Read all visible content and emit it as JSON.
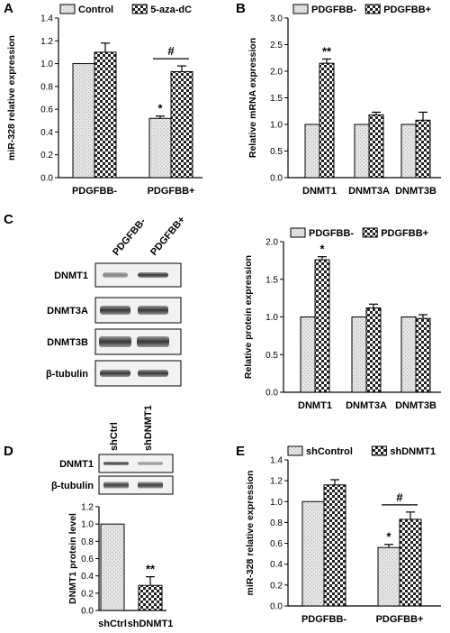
{
  "chart_data": [
    {
      "panel": "A",
      "type": "bar",
      "categories": [
        "PDGFBB-",
        "PDGFBB+"
      ],
      "series": [
        {
          "name": "Control",
          "values": [
            1.0,
            0.52
          ],
          "errors": [
            0.0,
            0.02
          ],
          "pattern": "solid"
        },
        {
          "name": "5-aza-dC",
          "values": [
            1.1,
            0.93
          ],
          "errors": [
            0.08,
            0.05
          ],
          "pattern": "check"
        }
      ],
      "ylabel": "miR-328 relative expression",
      "ylim": [
        0,
        1.4
      ],
      "yticks": [
        "0.0",
        "0.2",
        "0.4",
        "0.6",
        "0.8",
        "1.0",
        "1.2",
        "1.4"
      ],
      "annotations": [
        {
          "text": "*",
          "category": 1,
          "series": 0
        },
        {
          "text": "#",
          "category": 1,
          "bracket": true
        }
      ],
      "legend": "top"
    },
    {
      "panel": "B",
      "type": "bar",
      "categories": [
        "DNMT1",
        "DNMT3A",
        "DNMT3B"
      ],
      "series": [
        {
          "name": "PDGFBB-",
          "values": [
            1.0,
            1.0,
            1.0
          ],
          "errors": [
            0.0,
            0.0,
            0.0
          ],
          "pattern": "solid"
        },
        {
          "name": "PDGFBB+",
          "values": [
            2.15,
            1.18,
            1.08
          ],
          "errors": [
            0.08,
            0.05,
            0.15
          ],
          "pattern": "check"
        }
      ],
      "ylabel": "Relative mRNA expression",
      "ylim": [
        0,
        3.0
      ],
      "yticks": [
        "0.0",
        "0.5",
        "1.0",
        "1.5",
        "2.0",
        "2.5",
        "3.0"
      ],
      "annotations": [
        {
          "text": "**",
          "category": 0,
          "series": 1
        }
      ],
      "legend": "top"
    },
    {
      "panel": "C",
      "type": "bar",
      "categories": [
        "DNMT1",
        "DNMT3A",
        "DNMT3B"
      ],
      "series": [
        {
          "name": "PDGFBB-",
          "values": [
            1.0,
            1.0,
            1.0
          ],
          "errors": [
            0.0,
            0.0,
            0.0
          ],
          "pattern": "solid"
        },
        {
          "name": "PDGFBB+",
          "values": [
            1.76,
            1.12,
            0.98
          ],
          "errors": [
            0.04,
            0.05,
            0.05
          ],
          "pattern": "check"
        }
      ],
      "ylabel": "Relative protein expression",
      "ylim": [
        0,
        2.0
      ],
      "yticks": [
        "0.0",
        "0.5",
        "1.0",
        "1.5",
        "2.0"
      ],
      "annotations": [
        {
          "text": "*",
          "category": 0,
          "series": 1
        }
      ],
      "legend": "top"
    },
    {
      "panel": "D",
      "type": "bar",
      "categories": [
        "shCtrl",
        "shDNMT1"
      ],
      "series": [
        {
          "values": [
            1.0,
            0.29
          ],
          "errors": [
            0.0,
            0.1
          ],
          "patterns": [
            "solid",
            "check"
          ]
        }
      ],
      "ylabel": "DNMT1 protein level",
      "ylim": [
        0,
        1.2
      ],
      "yticks": [
        "0.0",
        "0.2",
        "0.4",
        "0.6",
        "0.8",
        "1.0",
        "1.2"
      ],
      "annotations": [
        {
          "text": "**",
          "category": 1
        }
      ]
    },
    {
      "panel": "E",
      "type": "bar",
      "categories": [
        "PDGFBB-",
        "PDGFBB+"
      ],
      "series": [
        {
          "name": "shControl",
          "values": [
            1.0,
            0.56
          ],
          "errors": [
            0.0,
            0.03
          ],
          "pattern": "solid"
        },
        {
          "name": "shDNMT1",
          "values": [
            1.16,
            0.83
          ],
          "errors": [
            0.05,
            0.07
          ],
          "pattern": "check"
        }
      ],
      "ylabel": "miR-328 relative expression",
      "ylim": [
        0,
        1.4
      ],
      "yticks": [
        "0.0",
        "0.2",
        "0.4",
        "0.6",
        "0.8",
        "1.0",
        "1.2",
        "1.4"
      ],
      "annotations": [
        {
          "text": "*",
          "category": 1,
          "series": 0
        },
        {
          "text": "#",
          "category": 1,
          "bracket": true
        }
      ],
      "legend": "top"
    }
  ],
  "panel_letters": [
    "A",
    "B",
    "C",
    "D",
    "E"
  ],
  "blots": {
    "C": {
      "lanes": [
        "PDGFBB-",
        "PDGFBB+"
      ],
      "rows": [
        "DNMT1",
        "DNMT3A",
        "DNMT3B",
        "β-tubulin"
      ]
    },
    "D": {
      "lanes": [
        "shCtrl",
        "shDNMT1"
      ],
      "rows": [
        "DNMT1",
        "β-tubulin"
      ]
    }
  }
}
